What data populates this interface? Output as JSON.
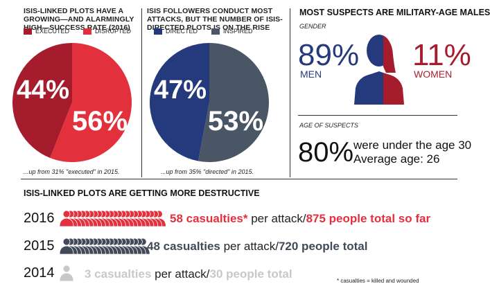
{
  "panel_plots": {
    "title": "ISIS-LINKED PLOTS HAVE A GROWING—AND ALARMINGLY HIGH—SUCCESS RATE (2016)",
    "legend": [
      "EXECUTED",
      "DISRUPTED"
    ],
    "labels": [
      "44%",
      "56%"
    ],
    "note": "...up from 31% \"executed\" in 2015."
  },
  "panel_attacks": {
    "title": "ISIS FOLLOWERS CONDUCT MOST ATTACKS, BUT THE NUMBER OF ISIS-DIRECTED PLOTS IS ON THE RISE",
    "legend": [
      "DIRECTED",
      "INSPIRED"
    ],
    "labels": [
      "47%",
      "53%"
    ],
    "note": "...up from 35% \"directed\" in 2015."
  },
  "panel_suspects": {
    "title": "MOST SUSPECTS ARE MILITARY-AGE MALES",
    "gender_label": "GENDER",
    "men_pct": "89%",
    "men_label": "MEN",
    "women_pct": "11%",
    "women_label": "WOMEN",
    "age_label": "AGE OF SUSPECTS",
    "age_pct": "80%",
    "age_line1": "were under the age 30",
    "age_line2": "Average age: 26"
  },
  "destructive": {
    "title": "ISIS-LINKED PLOTS ARE GETTING MORE DESTRUCTIVE",
    "rows": [
      {
        "year": "2016",
        "casualties": "58 casualties*",
        "mid": " per attack/",
        "total": "875 people total so far",
        "color": "#e3303d",
        "icons": 24
      },
      {
        "year": "2015",
        "casualties": "48 casualties",
        "mid": " per attack/",
        "total": "720 people total",
        "color": "#414a58",
        "icons": 20
      },
      {
        "year": "2014",
        "casualties": "3 casualties",
        "mid": " per attack/",
        "total": "30 people total",
        "color": "#c7c8ca",
        "icons": 1
      }
    ],
    "footnote": "* casualties = killed and wounded"
  },
  "colors": {
    "executed": "#a51d2d",
    "disrupted": "#e3303d",
    "directed": "#243a7c",
    "inspired": "#4a5565",
    "men": "#243a7c",
    "women": "#a51d2d"
  },
  "chart_data": [
    {
      "type": "pie",
      "title": "ISIS-LINKED PLOTS HAVE A GROWING—AND ALARMINGLY HIGH—SUCCESS RATE (2016)",
      "categories": [
        "EXECUTED",
        "DISRUPTED"
      ],
      "values": [
        44,
        56
      ]
    },
    {
      "type": "pie",
      "title": "ISIS FOLLOWERS CONDUCT MOST ATTACKS, BUT THE NUMBER OF ISIS-DIRECTED PLOTS IS ON THE RISE",
      "categories": [
        "DIRECTED",
        "INSPIRED"
      ],
      "values": [
        47,
        53
      ]
    },
    {
      "type": "bar",
      "title": "ISIS-LINKED PLOTS ARE GETTING MORE DESTRUCTIVE",
      "categories": [
        "2016",
        "2015",
        "2014"
      ],
      "values": [
        58,
        48,
        3
      ]
    }
  ]
}
